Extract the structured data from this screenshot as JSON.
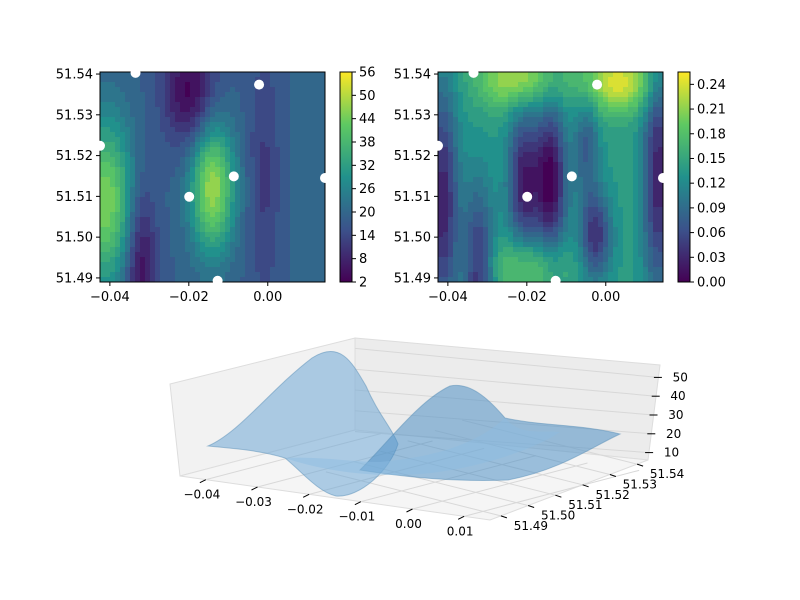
{
  "chart_data": [
    {
      "type": "contourf",
      "panel": "top-left",
      "x_ticks": [
        "−0.04",
        "−0.02",
        "0.00"
      ],
      "x_tick_values": [
        -0.04,
        -0.02,
        0.0
      ],
      "y_ticks": [
        "51.49",
        "51.50",
        "51.51",
        "51.52",
        "51.53",
        "51.54"
      ],
      "y_tick_values": [
        51.49,
        51.5,
        51.51,
        51.52,
        51.53,
        51.54
      ],
      "xlim": [
        -0.0425,
        0.0145
      ],
      "ylim": [
        51.489,
        51.5405
      ],
      "colorbar": {
        "ticks": [
          "2",
          "8",
          "14",
          "20",
          "26",
          "32",
          "38",
          "44",
          "50",
          "56"
        ],
        "range": [
          2,
          56
        ]
      },
      "colormap": "viridis",
      "points": [
        {
          "x": -0.0335,
          "y": 51.5403
        },
        {
          "x": -0.0022,
          "y": 51.5374
        },
        {
          "x": -0.0425,
          "y": 51.5224
        },
        {
          "x": -0.0086,
          "y": 51.5149
        },
        {
          "x": 0.0145,
          "y": 51.5145
        },
        {
          "x": -0.0199,
          "y": 51.5099
        },
        {
          "x": -0.0127,
          "y": 51.4893
        }
      ]
    },
    {
      "type": "contourf",
      "panel": "top-right",
      "x_ticks": [
        "−0.04",
        "−0.02",
        "0.00"
      ],
      "x_tick_values": [
        -0.04,
        -0.02,
        0.0
      ],
      "y_ticks": [
        "51.49",
        "51.50",
        "51.51",
        "51.52",
        "51.53",
        "51.54"
      ],
      "y_tick_values": [
        51.49,
        51.5,
        51.51,
        51.52,
        51.53,
        51.54
      ],
      "xlim": [
        -0.0425,
        0.0145
      ],
      "ylim": [
        51.489,
        51.5405
      ],
      "colorbar": {
        "ticks": [
          "0.00",
          "0.03",
          "0.06",
          "0.09",
          "0.12",
          "0.15",
          "0.18",
          "0.21",
          "0.24"
        ],
        "range": [
          0.0,
          0.255
        ]
      },
      "colormap": "viridis",
      "points": [
        {
          "x": -0.0335,
          "y": 51.5403
        },
        {
          "x": -0.0022,
          "y": 51.5374
        },
        {
          "x": -0.0425,
          "y": 51.5224
        },
        {
          "x": -0.0086,
          "y": 51.5149
        },
        {
          "x": 0.0145,
          "y": 51.5145
        },
        {
          "x": -0.0199,
          "y": 51.5099
        },
        {
          "x": -0.0127,
          "y": 51.4893
        }
      ]
    },
    {
      "type": "surface3d",
      "panel": "bottom",
      "x_ticks": [
        "−0.04",
        "−0.03",
        "−0.02",
        "−0.01",
        "0.00",
        "0.01"
      ],
      "x_tick_values": [
        -0.04,
        -0.03,
        -0.02,
        -0.01,
        0.0,
        0.01
      ],
      "y_ticks": [
        "51.49",
        "51.50",
        "51.51",
        "51.52",
        "51.53",
        "51.54"
      ],
      "y_tick_values": [
        51.49,
        51.5,
        51.51,
        51.52,
        51.53,
        51.54
      ],
      "z_ticks": [
        "10",
        "20",
        "30",
        "40",
        "50"
      ],
      "z_tick_values": [
        10,
        20,
        30,
        40,
        50
      ],
      "zlim": [
        5,
        55
      ],
      "surface_color": "#6fa8d6",
      "surface_alpha": 0.55
    }
  ]
}
